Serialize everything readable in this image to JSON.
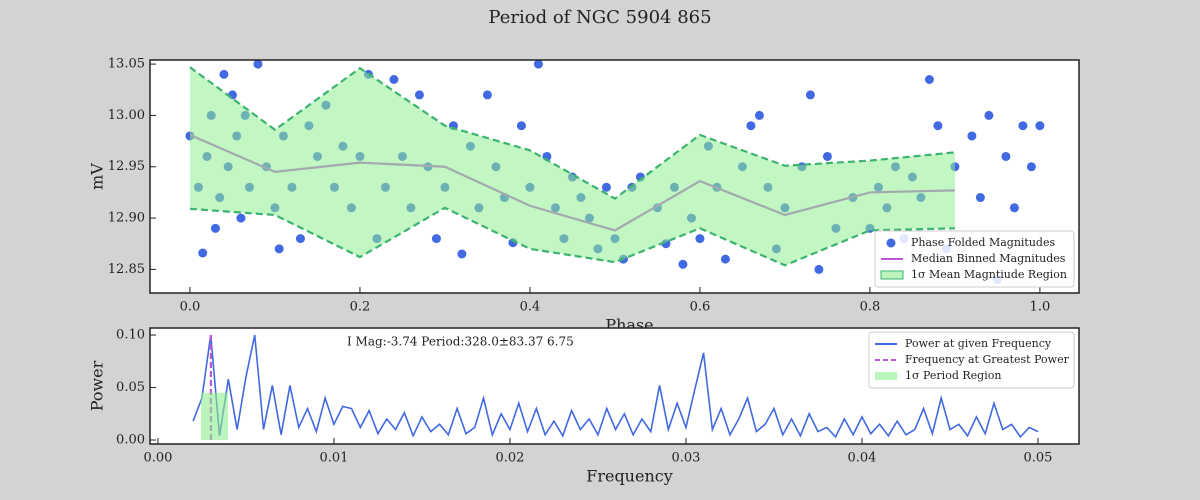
{
  "title": "Period of NGC  5904   865",
  "chart_data": [
    {
      "type": "scatter",
      "xlabel": "Phase",
      "ylabel": "mV",
      "xlim": [
        -0.047,
        1.046
      ],
      "ylim": [
        12.827,
        13.054
      ],
      "xticks": [
        {
          "value": 0,
          "label": "0.0"
        },
        0.2,
        0.4,
        0.6,
        0.8,
        {
          "value": 1,
          "label": "1.0"
        }
      ],
      "yticks": [
        12.85,
        {
          "value": 12.9,
          "label": "12.90"
        },
        12.95,
        {
          "value": 13,
          "label": "13.00"
        },
        13.05
      ],
      "legend": "lower right",
      "series": [
        {
          "name": "Phase Folded Magnitudes",
          "type": "scatter",
          "color": "#4169e1",
          "x": [
            0.0,
            0.01,
            0.015,
            0.02,
            0.025,
            0.03,
            0.035,
            0.04,
            0.045,
            0.05,
            0.055,
            0.06,
            0.065,
            0.07,
            0.08,
            0.09,
            0.1,
            0.105,
            0.11,
            0.12,
            0.13,
            0.14,
            0.15,
            0.16,
            0.17,
            0.18,
            0.19,
            0.2,
            0.21,
            0.22,
            0.23,
            0.24,
            0.25,
            0.26,
            0.27,
            0.28,
            0.29,
            0.3,
            0.31,
            0.32,
            0.33,
            0.34,
            0.35,
            0.36,
            0.37,
            0.38,
            0.39,
            0.4,
            0.41,
            0.42,
            0.43,
            0.44,
            0.45,
            0.46,
            0.47,
            0.48,
            0.49,
            0.5,
            0.51,
            0.52,
            0.53,
            0.55,
            0.56,
            0.57,
            0.58,
            0.59,
            0.6,
            0.61,
            0.62,
            0.63,
            0.65,
            0.66,
            0.67,
            0.68,
            0.69,
            0.7,
            0.72,
            0.73,
            0.74,
            0.75,
            0.76,
            0.78,
            0.8,
            0.81,
            0.82,
            0.83,
            0.84,
            0.85,
            0.86,
            0.87,
            0.88,
            0.89,
            0.9,
            0.92,
            0.93,
            0.94,
            0.95,
            0.96,
            0.97,
            0.98,
            0.99,
            1.0
          ],
          "values": [
            12.98,
            12.93,
            12.866,
            12.96,
            13.0,
            12.89,
            12.92,
            13.04,
            12.95,
            13.02,
            12.98,
            12.9,
            13.0,
            12.93,
            13.05,
            12.95,
            12.91,
            12.87,
            12.98,
            12.93,
            12.88,
            12.99,
            12.96,
            13.01,
            12.93,
            12.97,
            12.91,
            12.96,
            13.04,
            12.88,
            12.93,
            13.035,
            12.96,
            12.91,
            13.02,
            12.95,
            12.88,
            12.93,
            12.99,
            12.865,
            12.97,
            12.91,
            13.02,
            12.95,
            12.92,
            12.876,
            12.99,
            12.93,
            13.05,
            12.96,
            12.91,
            12.88,
            12.94,
            12.92,
            12.9,
            12.87,
            12.93,
            12.88,
            12.86,
            12.93,
            12.94,
            12.91,
            12.875,
            12.93,
            12.855,
            12.9,
            12.88,
            12.97,
            12.93,
            12.86,
            12.95,
            12.99,
            13.0,
            12.93,
            12.87,
            12.91,
            12.95,
            13.02,
            12.85,
            12.96,
            12.89,
            12.92,
            12.89,
            12.93,
            12.91,
            12.95,
            12.88,
            12.94,
            12.92,
            13.035,
            12.99,
            12.87,
            12.95,
            12.98,
            12.92,
            13.0,
            12.84,
            12.96,
            12.91,
            12.99,
            12.95,
            12.99
          ]
        },
        {
          "name": "Median Binned Magnitudes",
          "type": "line",
          "color": "#ba55d3",
          "x": [
            0,
            0.1,
            0.2,
            0.3,
            0.4,
            0.5,
            0.6,
            0.7,
            0.8,
            0.9
          ],
          "values": [
            12.981,
            12.945,
            12.954,
            12.95,
            12.912,
            12.888,
            12.936,
            12.903,
            12.925,
            12.927
          ]
        },
        {
          "name": "1σ Mean Magntiude Region",
          "type": "band",
          "color": "#90ee90",
          "edge_color": "#3cb371",
          "x": [
            0,
            0.1,
            0.2,
            0.3,
            0.4,
            0.5,
            0.6,
            0.7,
            0.8,
            0.9
          ],
          "lower": [
            12.909,
            12.903,
            12.862,
            12.91,
            12.87,
            12.857,
            12.89,
            12.854,
            12.888,
            12.89
          ],
          "upper": [
            13.047,
            12.986,
            13.046,
            12.99,
            12.966,
            12.919,
            12.981,
            12.951,
            12.956,
            12.964
          ]
        }
      ]
    },
    {
      "type": "line",
      "xlabel": "Frequency",
      "ylabel": "Power",
      "annotation": "I Mag:-3.74 Period:328.0±83.37 6.75",
      "xlim": [
        -0.00045,
        0.05233
      ],
      "ylim": [
        -0.0038,
        0.1067
      ],
      "xticks": [
        {
          "value": 0,
          "label": "0.00"
        },
        0.01,
        0.02,
        0.03,
        0.04,
        0.05
      ],
      "yticks": [
        {
          "value": 0,
          "label": "0.00"
        },
        0.05,
        {
          "value": 0.1,
          "label": "0.10"
        }
      ],
      "legend": "upper right",
      "series": [
        {
          "name": "Power at given Frequency",
          "type": "line",
          "color": "#4169e1",
          "x": [
            0.002,
            0.0025,
            0.003,
            0.0035,
            0.004,
            0.0045,
            0.005,
            0.0055,
            0.006,
            0.0065,
            0.007,
            0.0075,
            0.008,
            0.0085,
            0.009,
            0.0095,
            0.01,
            0.0105,
            0.011,
            0.0115,
            0.012,
            0.0125,
            0.013,
            0.0135,
            0.014,
            0.0145,
            0.015,
            0.0155,
            0.016,
            0.0165,
            0.017,
            0.0175,
            0.018,
            0.0185,
            0.019,
            0.0195,
            0.02,
            0.0205,
            0.021,
            0.0215,
            0.022,
            0.0225,
            0.023,
            0.0235,
            0.024,
            0.0245,
            0.025,
            0.0255,
            0.026,
            0.0265,
            0.027,
            0.0275,
            0.028,
            0.0285,
            0.029,
            0.0295,
            0.03,
            0.0305,
            0.031,
            0.0315,
            0.032,
            0.0325,
            0.033,
            0.0335,
            0.034,
            0.0345,
            0.035,
            0.0355,
            0.036,
            0.0365,
            0.037,
            0.0375,
            0.038,
            0.0385,
            0.039,
            0.0395,
            0.04,
            0.0405,
            0.041,
            0.0415,
            0.042,
            0.0425,
            0.043,
            0.0435,
            0.044,
            0.0445,
            0.045,
            0.0455,
            0.046,
            0.0465,
            0.047,
            0.0475,
            0.048,
            0.0485,
            0.049,
            0.0495,
            0.05
          ],
          "values": [
            0.018,
            0.04,
            0.1,
            0.004,
            0.058,
            0.01,
            0.06,
            0.1,
            0.01,
            0.052,
            0.005,
            0.052,
            0.012,
            0.03,
            0.008,
            0.04,
            0.015,
            0.032,
            0.03,
            0.012,
            0.028,
            0.006,
            0.02,
            0.01,
            0.026,
            0.004,
            0.022,
            0.008,
            0.015,
            0.005,
            0.03,
            0.006,
            0.012,
            0.04,
            0.005,
            0.025,
            0.01,
            0.035,
            0.008,
            0.03,
            0.005,
            0.018,
            0.004,
            0.028,
            0.01,
            0.02,
            0.005,
            0.03,
            0.01,
            0.025,
            0.005,
            0.02,
            0.008,
            0.052,
            0.01,
            0.035,
            0.012,
            0.048,
            0.083,
            0.01,
            0.03,
            0.005,
            0.02,
            0.04,
            0.008,
            0.015,
            0.03,
            0.005,
            0.02,
            0.004,
            0.025,
            0.008,
            0.012,
            0.003,
            0.02,
            0.005,
            0.022,
            0.006,
            0.015,
            0.004,
            0.018,
            0.005,
            0.01,
            0.03,
            0.006,
            0.04,
            0.01,
            0.015,
            0.004,
            0.022,
            0.006,
            0.035,
            0.01,
            0.015,
            0.003,
            0.012,
            0.008
          ]
        },
        {
          "name": "Frequency at Greatest Power",
          "type": "vline",
          "color": "#ba55d3",
          "x": 0.00301,
          "values": [
            0,
            0.102
          ]
        },
        {
          "name": "1σ Period Region",
          "type": "span",
          "color": "#90ee90",
          "x": [
            0.00244,
            0.00398
          ],
          "values": [
            0,
            0.045
          ]
        }
      ]
    }
  ]
}
